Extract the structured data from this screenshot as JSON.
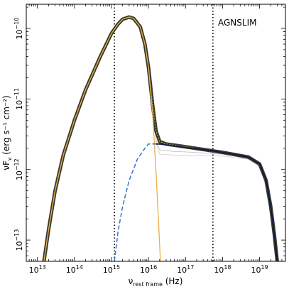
{
  "chart_data": {
    "type": "line",
    "title": "",
    "annotation": "AGNSLIM",
    "xlabel": {
      "base": "ν",
      "subscript": "rest frame",
      "unit": " (Hz)"
    },
    "ylabel": {
      "base": "νF",
      "subscript": "ν",
      "unit": " (erg s⁻¹ cm⁻²)"
    },
    "x_scale": "log",
    "y_scale": "log",
    "xlim": [
      5000000000000.0,
      5e+19
    ],
    "ylim": [
      5e-14,
      2.2e-10
    ],
    "x_ticks": [
      {
        "value": 10000000000000.0,
        "mantissa": "10",
        "exp": "13"
      },
      {
        "value": 100000000000000.0,
        "mantissa": "10",
        "exp": "14"
      },
      {
        "value": 1000000000000000.0,
        "mantissa": "10",
        "exp": "15"
      },
      {
        "value": 1e+16,
        "mantissa": "10",
        "exp": "16"
      },
      {
        "value": 1e+17,
        "mantissa": "10",
        "exp": "17"
      },
      {
        "value": 1e+18,
        "mantissa": "10",
        "exp": "18"
      },
      {
        "value": 1e+19,
        "mantissa": "10",
        "exp": "19"
      }
    ],
    "y_ticks": [
      {
        "value": 1e-13,
        "mantissa": "10",
        "exp": "−13"
      },
      {
        "value": 1e-12,
        "mantissa": "10",
        "exp": "−12"
      },
      {
        "value": 1e-11,
        "mantissa": "10",
        "exp": "−11"
      },
      {
        "value": 1e-10,
        "mantissa": "10",
        "exp": "−10"
      }
    ],
    "vlines": [
      1200000000000000.0,
      5.5e+17
    ],
    "series": [
      {
        "role": "total-model-band",
        "color": "#3a3a2a",
        "x": [
          15000000000000.0,
          20000000000000.0,
          30000000000000.0,
          50000000000000.0,
          100000000000000.0,
          200000000000000.0,
          500000000000000.0,
          1000000000000000.0,
          1500000000000000.0,
          2000000000000000.0,
          3000000000000000.0,
          4000000000000000.0,
          6000000000000000.0,
          8000000000000000.0,
          1e+16,
          1.3e+16,
          1.6e+16,
          2e+16,
          3e+16,
          1e+17,
          1e+18,
          5e+18,
          1e+19,
          1.5e+19,
          2e+19,
          2.5e+19,
          3e+19
        ],
        "y": [
          5e-14,
          1.4e-13,
          5e-13,
          1.6e-12,
          5e-12,
          1.35e-11,
          4e-11,
          8.5e-11,
          1.15e-10,
          1.35e-10,
          1.45e-10,
          1.38e-10,
          1.05e-10,
          6e-11,
          2.8e-11,
          8e-12,
          3.5e-12,
          2.5e-12,
          2.3e-12,
          2.1e-12,
          1.75e-12,
          1.5e-12,
          1.2e-12,
          7e-13,
          3e-13,
          1.2e-13,
          5e-14
        ]
      },
      {
        "role": "disc-component",
        "color": "#e8b04a",
        "x": [
          15000000000000.0,
          20000000000000.0,
          30000000000000.0,
          50000000000000.0,
          100000000000000.0,
          200000000000000.0,
          500000000000000.0,
          1000000000000000.0,
          1500000000000000.0,
          2000000000000000.0,
          3000000000000000.0,
          4000000000000000.0,
          6000000000000000.0,
          8000000000000000.0,
          1e+16,
          1.3e+16,
          1.6e+16,
          1.9e+16,
          2.1e+16
        ],
        "y": [
          5e-14,
          1.4e-13,
          5e-13,
          1.6e-12,
          5e-12,
          1.35e-11,
          4e-11,
          8.5e-11,
          1.15e-10,
          1.35e-10,
          1.45e-10,
          1.38e-10,
          1.05e-10,
          6e-11,
          2.8e-11,
          6e-12,
          9e-13,
          1.5e-13,
          5e-14
        ]
      },
      {
        "role": "comptonised-component",
        "color": "#3a6fd8",
        "x": [
          1200000000000000.0,
          1500000000000000.0,
          2000000000000000.0,
          3000000000000000.0,
          5000000000000000.0,
          8000000000000000.0,
          1e+16,
          2e+16,
          5e+16,
          1e+17,
          5e+17,
          1e+18,
          5e+18,
          1e+19,
          1.5e+19,
          2e+19,
          2.5e+19,
          3e+19
        ],
        "y": [
          5e-14,
          1.3e-13,
          3e-13,
          7e-13,
          1.4e-12,
          2e-12,
          2.3e-12,
          2.3e-12,
          2.15e-12,
          2.05e-12,
          1.85e-12,
          1.75e-12,
          1.5e-12,
          1.2e-12,
          7e-13,
          3e-13,
          1.2e-13,
          5e-14
        ]
      },
      {
        "role": "comptonised-component-fit",
        "color": "#0d1a44",
        "x": [
          1.6e+16,
          2e+16,
          5e+16,
          1e+17,
          5e+17,
          1e+18,
          5e+18,
          1e+19,
          1.5e+19,
          2e+19,
          2.5e+19,
          3e+19
        ],
        "y": [
          2.3e-12,
          2.3e-12,
          2.15e-12,
          2.05e-12,
          1.85e-12,
          1.75e-12,
          1.5e-12,
          1.2e-12,
          7e-13,
          3e-13,
          1.2e-13,
          5e-14
        ]
      },
      {
        "role": "alt-model-1",
        "color": "#c8c8c8",
        "x": [
          3000000000000000.0,
          5000000000000000.0,
          8000000000000000.0,
          1e+16,
          1.3e+16,
          1.6e+16,
          2e+16,
          5e+16,
          1e+17,
          1e+18,
          5e+18,
          1e+19,
          1.5e+19,
          2e+19,
          3e+19
        ],
        "y": [
          1.4e-10,
          1.3e-10,
          6.5e-11,
          3e-11,
          8e-12,
          2.6e-12,
          1.9e-12,
          1.8e-12,
          1.78e-12,
          1.65e-12,
          1.45e-12,
          1.15e-12,
          6.5e-13,
          2.5e-13,
          5e-14
        ]
      },
      {
        "role": "alt-model-2",
        "color": "#d8d8d8",
        "x": [
          3000000000000000.0,
          5000000000000000.0,
          8000000000000000.0,
          1e+16,
          1.3e+16,
          1.6e+16,
          2e+16,
          5e+16,
          1e+17,
          1e+18,
          5e+18,
          1e+19,
          1.5e+19,
          2e+19,
          3e+19
        ],
        "y": [
          1.42e-10,
          1.28e-10,
          6.2e-11,
          2.9e-11,
          7.5e-12,
          2.4e-12,
          1.65e-12,
          1.6e-12,
          1.6e-12,
          1.55e-12,
          1.4e-12,
          1.1e-12,
          6e-13,
          2.2e-13,
          5e-14
        ]
      }
    ]
  }
}
